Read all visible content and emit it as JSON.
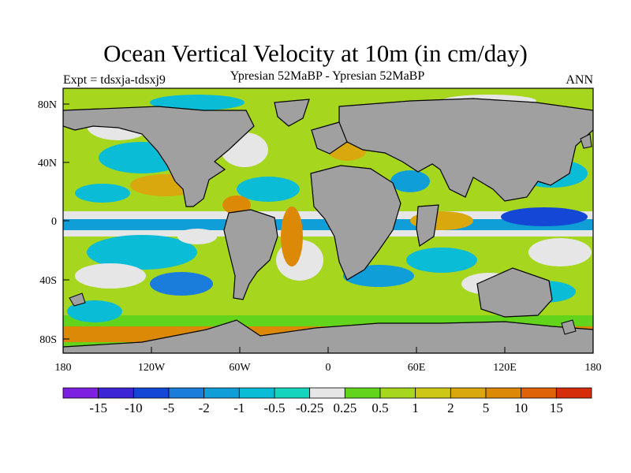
{
  "title": "Ocean Vertical Velocity at 10m (in cm/day)",
  "subtitle_left": "Expt = tdsxja-tdsxj9",
  "subtitle_center": "Ypresian  52MaBP - Ypresian  52MaBP",
  "subtitle_right": "ANN",
  "axes": {
    "y_ticks": [
      "80N",
      "40N",
      "0",
      "40S",
      "80S"
    ],
    "x_ticks": [
      "180",
      "120W",
      "60W",
      "0",
      "60E",
      "120E",
      "180"
    ]
  },
  "colorbar": {
    "labels": [
      "-15",
      "-10",
      "-5",
      "-2",
      "-1",
      "-0.5",
      "-0.25",
      "0.25",
      "0.5",
      "1",
      "2",
      "5",
      "10",
      "15"
    ],
    "colors": [
      "#7d1fe0",
      "#3b25d4",
      "#1447d6",
      "#1b7ddb",
      "#109ed8",
      "#0bbcd6",
      "#14d4bd",
      "#e6e6e6",
      "#62d41b",
      "#a7d61e",
      "#cfc716",
      "#d9a80d",
      "#dd8908",
      "#df6208",
      "#d52c0a"
    ]
  },
  "colors": {
    "land": "#a0a0a0",
    "near_zero": "#e6e6e6"
  }
}
